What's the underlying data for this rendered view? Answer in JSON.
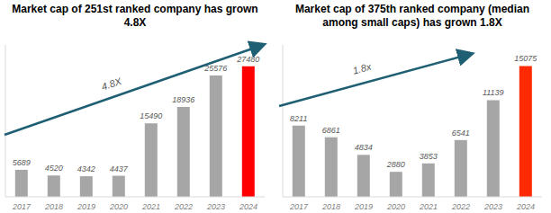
{
  "chart_data": [
    {
      "type": "bar",
      "title": "Market cap of 251st ranked company has grown 4.8X",
      "categories": [
        "2017",
        "2018",
        "2019",
        "2020",
        "2021",
        "2022",
        "2023",
        "2024"
      ],
      "values": [
        5689,
        4520,
        4342,
        4437,
        15490,
        18936,
        25576,
        27480
      ],
      "colors": [
        "#a6a6a6",
        "#a6a6a6",
        "#a6a6a6",
        "#a6a6a6",
        "#a6a6a6",
        "#a6a6a6",
        "#a6a6a6",
        "#ff0000"
      ],
      "ylim": [
        0,
        32000
      ],
      "data_labels": true,
      "tick_labels": "x",
      "grid": false,
      "annotations": [
        "4.8X"
      ]
    },
    {
      "type": "bar",
      "title": "Market cap of 375th ranked company (median among small caps) has grown 1.8X",
      "categories": [
        "2017",
        "2018",
        "2019",
        "2020",
        "2021",
        "2022",
        "2023",
        "2024"
      ],
      "values": [
        8211,
        6861,
        4834,
        2880,
        3853,
        6541,
        11139,
        15075
      ],
      "colors": [
        "#a6a6a6",
        "#a6a6a6",
        "#a6a6a6",
        "#a6a6a6",
        "#a6a6a6",
        "#a6a6a6",
        "#a6a6a6",
        "#ff2a00"
      ],
      "ylim": [
        0,
        17500
      ],
      "data_labels": true,
      "tick_labels": "x",
      "grid": false,
      "annotations": [
        "1.8x"
      ]
    }
  ]
}
